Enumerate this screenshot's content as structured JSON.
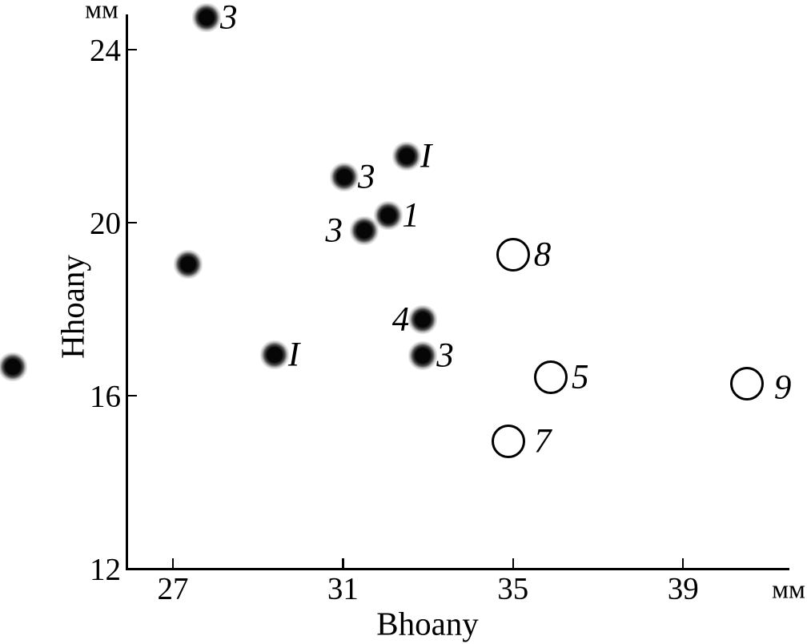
{
  "figure": {
    "background_color": "#ffffff",
    "ink_color": "#000000"
  },
  "chart_data": {
    "type": "scatter",
    "title": "",
    "xlabel": "Bhoany",
    "ylabel": "Hhoany",
    "x_unit": "мм",
    "y_unit": "мм",
    "x_ticks": [
      27,
      31,
      35,
      39
    ],
    "y_ticks": [
      12,
      16,
      20,
      24
    ],
    "xlim": [
      25.9,
      41.6
    ],
    "ylim": [
      12,
      24.9
    ],
    "grid": false,
    "legend_position": "none",
    "series": [
      {
        "name": "filled-dots",
        "marker": "filled-blurred-dot",
        "points": [
          {
            "x": 27.79,
            "y": 24.74,
            "label": "3",
            "label_side": "right"
          },
          {
            "x": 31.03,
            "y": 21.06,
            "label": "3",
            "label_side": "right"
          },
          {
            "x": 32.5,
            "y": 21.54,
            "label": "I",
            "label_side": "right"
          },
          {
            "x": 32.07,
            "y": 20.17,
            "label": "1",
            "label_side": "right"
          },
          {
            "x": 31.5,
            "y": 19.81,
            "label": "3",
            "label_side": "left",
            "label_dx": -10
          },
          {
            "x": 27.36,
            "y": 19.04,
            "label": "",
            "label_side": "none"
          },
          {
            "x": 32.88,
            "y": 17.76,
            "label": "4",
            "label_side": "left"
          },
          {
            "x": 32.88,
            "y": 16.93,
            "label": "3",
            "label_side": "right"
          },
          {
            "x": 29.39,
            "y": 16.94,
            "label": "I",
            "label_side": "right"
          },
          {
            "x": 23.23,
            "y": 16.67,
            "label": "",
            "label_side": "none",
            "clipped_at_left_edge": true
          }
        ]
      },
      {
        "name": "open-circles",
        "marker": "open-circle",
        "points": [
          {
            "x": 35.0,
            "y": 19.26,
            "label": "8",
            "label_side": "right"
          },
          {
            "x": 35.89,
            "y": 16.43,
            "label": "5",
            "label_side": "right"
          },
          {
            "x": 34.89,
            "y": 14.94,
            "label": "7",
            "label_side": "right",
            "label_dx": 6
          },
          {
            "x": 40.5,
            "y": 16.28,
            "label": "9",
            "label_side": "right",
            "label_dx": 8,
            "label_dy": 5
          }
        ]
      }
    ]
  }
}
